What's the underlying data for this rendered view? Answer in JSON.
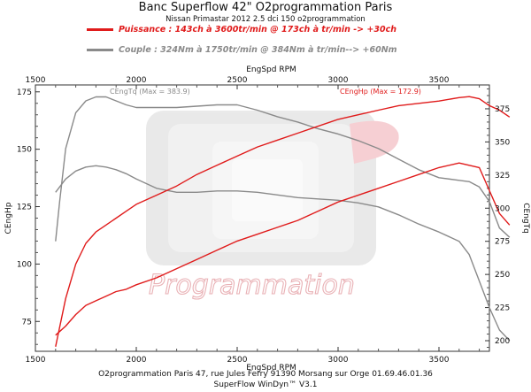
{
  "header": {
    "title": "Banc Superflow 42\" O2programmation Paris",
    "subtitle": "Nissan Primastar 2012 2.5 dci 150 o2programmation"
  },
  "legend": [
    {
      "label": "Puissance : 143ch à 3600tr/min @ 173ch à tr/min  -> +30ch",
      "color": "#e01b1b"
    },
    {
      "label": "Couple :  324Nm à 1750tr/min @ 384Nm à tr/min--> +60Nm",
      "color": "#8a8a8a"
    }
  ],
  "watermark": "Programmation",
  "footer": {
    "line1": "O2programmation Paris 47, rue Jules Ferry 91390 Morsang sur Orge 01.69.46.01.36",
    "line2": "SuperFlow WinDyn™ V3.1"
  },
  "chart_data": {
    "type": "line",
    "xlabel": "EngSpd RPM",
    "xlim": [
      1500,
      3750
    ],
    "x_ticks": [
      "1500",
      "2000",
      "2500",
      "3000",
      "3500"
    ],
    "left_axis": {
      "label": "CEngHp",
      "ylim": [
        62,
        178
      ],
      "ticks": [
        "75",
        "100",
        "125",
        "150",
        "175"
      ]
    },
    "right_axis": {
      "label": "CEngTq",
      "ylim": [
        192,
        393
      ],
      "ticks": [
        "200",
        "225",
        "250",
        "275",
        "300",
        "325",
        "350",
        "375"
      ]
    },
    "annotations": [
      {
        "text": "CEngTq (Max = 383.9)",
        "color": "#8a8a8a"
      },
      {
        "text": "CEngHp (Max = 172.9)",
        "color": "#e01b1b"
      }
    ],
    "series": [
      {
        "axis": "right",
        "color": "#8a8a8a",
        "width": 1.4,
        "x": [
          1600,
          1620,
          1650,
          1700,
          1750,
          1800,
          1850,
          1900,
          1950,
          2000,
          2100,
          2200,
          2300,
          2400,
          2500,
          2600,
          2700,
          2800,
          2900,
          3000,
          3100,
          3200,
          3300,
          3400,
          3500,
          3600,
          3650,
          3700,
          3750,
          3800,
          3850
        ],
        "values": [
          275,
          305,
          345,
          372,
          381,
          384,
          384,
          381,
          378,
          376,
          376,
          376,
          377,
          378,
          378,
          374,
          369,
          365,
          360,
          356,
          351,
          345,
          337,
          329,
          323,
          321,
          320,
          316,
          305,
          285,
          278
        ]
      },
      {
        "axis": "right",
        "color": "#8a8a8a",
        "width": 1.4,
        "x": [
          1600,
          1650,
          1700,
          1750,
          1800,
          1850,
          1900,
          1950,
          2000,
          2100,
          2200,
          2300,
          2400,
          2500,
          2600,
          2700,
          2800,
          2900,
          3000,
          3100,
          3200,
          3300,
          3400,
          3500,
          3600,
          3650,
          3700,
          3750,
          3800,
          3850
        ],
        "values": [
          312,
          322,
          328,
          331,
          332,
          331,
          329,
          326,
          322,
          315,
          312,
          312,
          313,
          313,
          312,
          310,
          308,
          307,
          306,
          304,
          301,
          295,
          288,
          282,
          275,
          265,
          245,
          225,
          208,
          200
        ]
      },
      {
        "axis": "left",
        "color": "#e01b1b",
        "width": 1.4,
        "x": [
          1600,
          1650,
          1700,
          1750,
          1800,
          1850,
          1900,
          1950,
          2000,
          2100,
          2200,
          2300,
          2400,
          2500,
          2600,
          2700,
          2800,
          2900,
          3000,
          3100,
          3200,
          3300,
          3400,
          3500,
          3600,
          3650,
          3700,
          3750,
          3800,
          3850
        ],
        "values": [
          64,
          85,
          100,
          109,
          114,
          117,
          120,
          123,
          126,
          130,
          134,
          139,
          143,
          147,
          151,
          154,
          157,
          160,
          163,
          165,
          167,
          169,
          170,
          171,
          172.5,
          172.9,
          172,
          169,
          167,
          164
        ]
      },
      {
        "axis": "left",
        "color": "#e01b1b",
        "width": 1.4,
        "x": [
          1600,
          1650,
          1700,
          1750,
          1800,
          1850,
          1900,
          1950,
          2000,
          2100,
          2200,
          2300,
          2400,
          2500,
          2600,
          2700,
          2800,
          2900,
          3000,
          3100,
          3200,
          3300,
          3400,
          3500,
          3600,
          3650,
          3700,
          3750,
          3800,
          3850
        ],
        "values": [
          69,
          73,
          78,
          82,
          84,
          86,
          88,
          89,
          91,
          94,
          98,
          102,
          106,
          110,
          113,
          116,
          119,
          123,
          127,
          130,
          133,
          136,
          139,
          142,
          144,
          143,
          142,
          132,
          122,
          117
        ]
      }
    ]
  }
}
